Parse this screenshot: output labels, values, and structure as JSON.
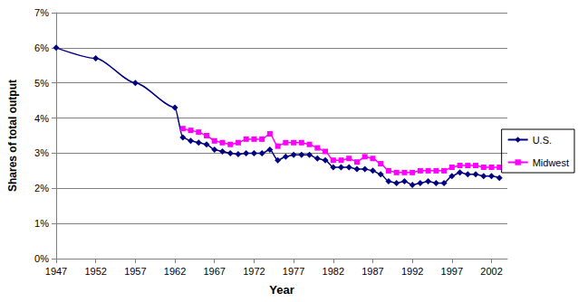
{
  "chart_data": {
    "type": "line",
    "x_label": "Year",
    "y_label": "Shares of total output",
    "x": [
      1947,
      1952,
      1957,
      1962,
      1963,
      1964,
      1965,
      1966,
      1967,
      1968,
      1969,
      1970,
      1971,
      1972,
      1973,
      1974,
      1975,
      1976,
      1977,
      1978,
      1979,
      1980,
      1981,
      1982,
      1983,
      1984,
      1985,
      1986,
      1987,
      1988,
      1989,
      1990,
      1991,
      1992,
      1993,
      1994,
      1995,
      1996,
      1997,
      1998,
      1999,
      2000,
      2001,
      2002,
      2003
    ],
    "series": [
      {
        "name": "U.S.",
        "color": "#000080",
        "marker": "diamond",
        "values": [
          6.0,
          5.7,
          5.0,
          4.3,
          3.45,
          3.35,
          3.3,
          3.25,
          3.1,
          3.05,
          3.0,
          2.97,
          3.0,
          3.0,
          3.0,
          3.1,
          2.8,
          2.9,
          2.95,
          2.95,
          2.95,
          2.85,
          2.8,
          2.6,
          2.6,
          2.6,
          2.55,
          2.55,
          2.5,
          2.4,
          2.2,
          2.15,
          2.2,
          2.1,
          2.15,
          2.2,
          2.15,
          2.15,
          2.35,
          2.45,
          2.4,
          2.4,
          2.35,
          2.35,
          2.3
        ]
      },
      {
        "name": "Midwest",
        "color": "#ff00ff",
        "marker": "square",
        "values": [
          null,
          null,
          null,
          null,
          3.7,
          3.65,
          3.6,
          3.5,
          3.35,
          3.3,
          3.25,
          3.3,
          3.4,
          3.4,
          3.4,
          3.55,
          3.2,
          3.3,
          3.3,
          3.3,
          3.25,
          3.15,
          3.05,
          2.8,
          2.8,
          2.85,
          2.75,
          2.9,
          2.85,
          2.7,
          2.5,
          2.45,
          2.45,
          2.45,
          2.5,
          2.5,
          2.5,
          2.5,
          2.6,
          2.65,
          2.65,
          2.65,
          2.6,
          2.6,
          2.6
        ]
      }
    ],
    "xlim": [
      1947,
      2004
    ],
    "xticks": [
      1947,
      1952,
      1957,
      1962,
      1967,
      1972,
      1977,
      1982,
      1987,
      1992,
      1997,
      2002
    ],
    "ylim": [
      0,
      7
    ],
    "yticks": [
      {
        "value": 0,
        "label": "0%"
      },
      {
        "value": 1,
        "label": "1%"
      },
      {
        "value": 2,
        "label": "2%"
      },
      {
        "value": 3,
        "label": "3%"
      },
      {
        "value": 4,
        "label": "4%"
      },
      {
        "value": 5,
        "label": "5%"
      },
      {
        "value": 6,
        "label": "6%"
      },
      {
        "value": 7,
        "label": "7%"
      }
    ],
    "grid": true,
    "legend": "right"
  }
}
